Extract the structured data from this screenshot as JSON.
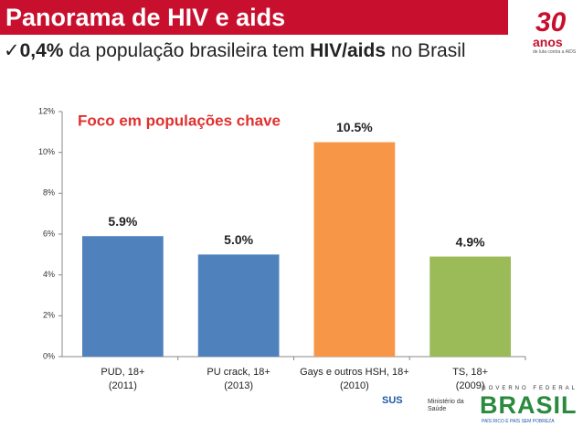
{
  "header": {
    "title": "Panorama de HIV e aids",
    "subtitle": [
      {
        "text": "✓",
        "bold": false
      },
      {
        "text": "0,4%",
        "bold": true
      },
      {
        "text": " da população brasileira tem ",
        "bold": false
      },
      {
        "text": "HIV/aids",
        "bold": true
      },
      {
        "text": " no Brasil",
        "bold": false
      }
    ]
  },
  "logos": {
    "anniversary": {
      "number": "30",
      "word": "anos",
      "caption": "de luta contra a AIDS"
    },
    "sus": "SUS",
    "ministry": "Ministério da\nSaúde",
    "government": {
      "top": "GOVERNO FEDERAL",
      "name": "BRASIL",
      "motto": "PAÍS RICO É PAÍS SEM POBREZA"
    }
  },
  "chart_data": {
    "type": "bar",
    "annotation": "Foco em populações chave",
    "categories": [
      "PUD, 18+\n(2011)",
      "PU crack, 18+\n(2013)",
      "Gays e outros HSH, 18+\n(2010)",
      "TS, 18+\n(2009)"
    ],
    "values": [
      5.9,
      5.0,
      10.5,
      4.9
    ],
    "value_labels": [
      "5.9%",
      "5.0%",
      "10.5%",
      "4.9%"
    ],
    "colors": [
      "#4f81bd",
      "#4f81bd",
      "#f79646",
      "#9bbb59"
    ],
    "ylim": [
      0,
      12
    ],
    "yticks": [
      {
        "value": 0,
        "label": "0%"
      },
      {
        "value": 2,
        "label": "2%"
      },
      {
        "value": 4,
        "label": "4%"
      },
      {
        "value": 6,
        "label": "6%"
      },
      {
        "value": 8,
        "label": "8%"
      },
      {
        "value": 10,
        "label": "10%"
      },
      {
        "value": 12,
        "label": "12%"
      }
    ]
  }
}
